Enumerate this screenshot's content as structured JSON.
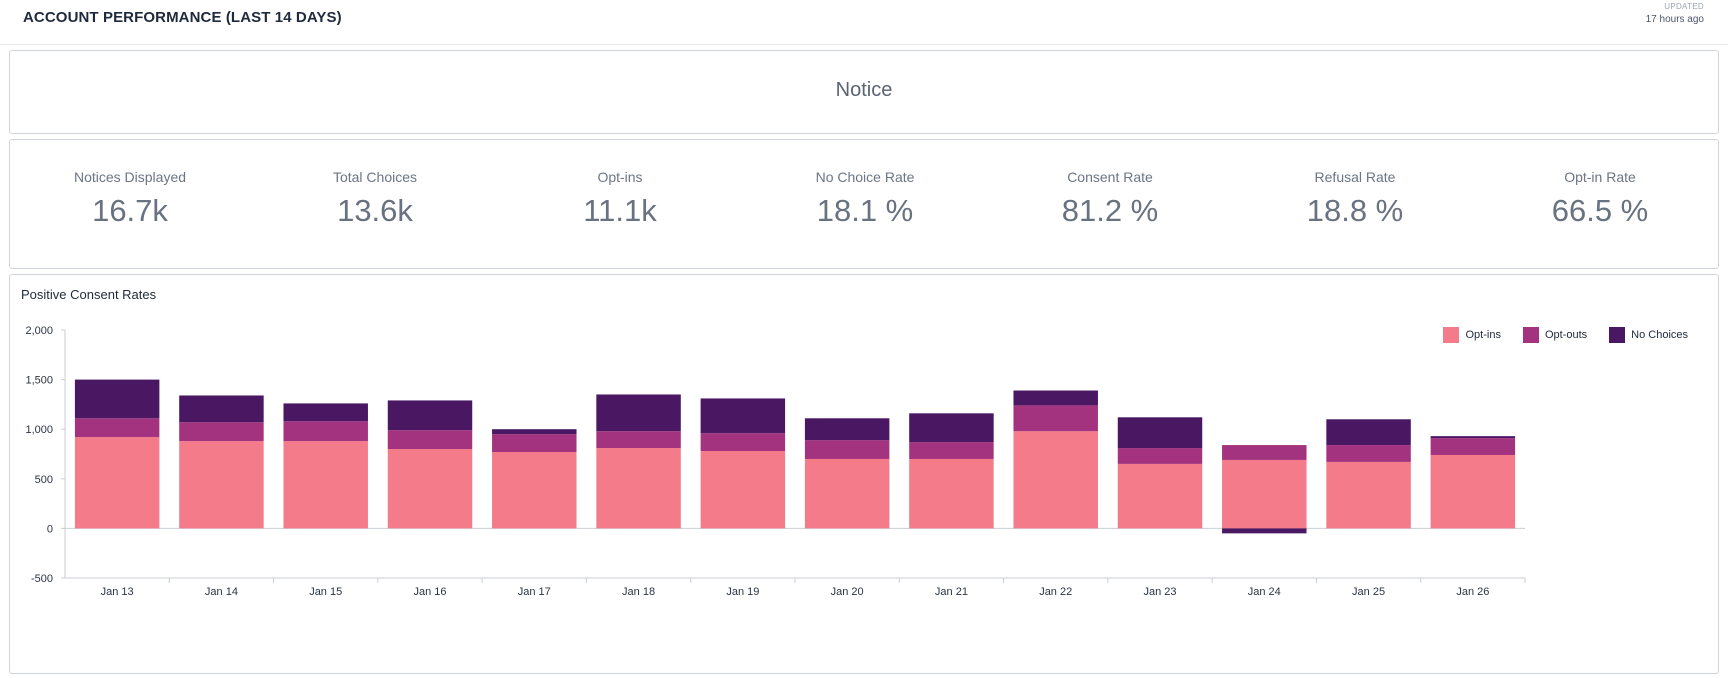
{
  "header": {
    "title": "ACCOUNT PERFORMANCE (LAST 14 DAYS)",
    "updated_label": "UPDATED",
    "updated_value": "17 hours ago"
  },
  "notice": {
    "title": "Notice"
  },
  "stats": [
    {
      "label": "Notices Displayed",
      "value": "16.7k"
    },
    {
      "label": "Total Choices",
      "value": "13.6k"
    },
    {
      "label": "Opt-ins",
      "value": "11.1k"
    },
    {
      "label": "No Choice Rate",
      "value": "18.1 %"
    },
    {
      "label": "Consent Rate",
      "value": "81.2 %"
    },
    {
      "label": "Refusal Rate",
      "value": "18.8 %"
    },
    {
      "label": "Opt-in Rate",
      "value": "66.5 %"
    }
  ],
  "chart_data": {
    "type": "bar",
    "stacked": true,
    "title": "Positive Consent Rates",
    "xlabel": "",
    "ylabel": "",
    "ylim": [
      -500,
      2000
    ],
    "yticks": [
      "2,000",
      "1,500",
      "1,000",
      "500",
      "0",
      "-500"
    ],
    "grid": false,
    "legend_position": "top-right",
    "categories": [
      "Jan 13",
      "Jan 14",
      "Jan 15",
      "Jan 16",
      "Jan 17",
      "Jan 18",
      "Jan 19",
      "Jan 20",
      "Jan 21",
      "Jan 22",
      "Jan 23",
      "Jan 24",
      "Jan 25",
      "Jan 26"
    ],
    "series": [
      {
        "name": "Opt-ins",
        "color": "#f47b8a",
        "values": [
          920,
          880,
          880,
          800,
          770,
          810,
          780,
          700,
          700,
          980,
          650,
          690,
          670,
          740
        ]
      },
      {
        "name": "Opt-outs",
        "color": "#a3337e",
        "values": [
          190,
          190,
          200,
          190,
          180,
          170,
          180,
          190,
          170,
          260,
          160,
          150,
          170,
          170
        ]
      },
      {
        "name": "No Choices",
        "color": "#4a1763",
        "values": [
          390,
          270,
          180,
          300,
          50,
          370,
          350,
          220,
          290,
          150,
          310,
          -50,
          260,
          20
        ]
      }
    ]
  }
}
